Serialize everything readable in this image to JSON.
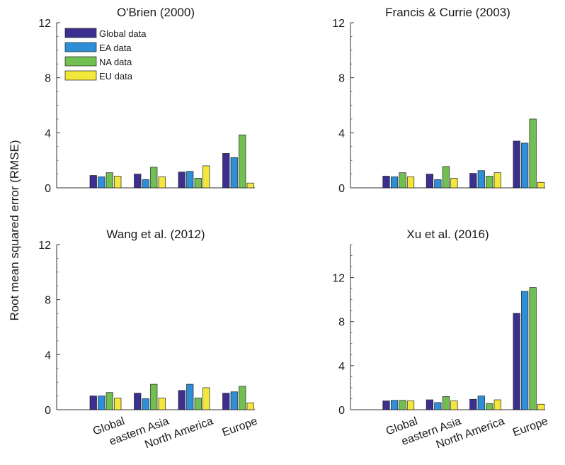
{
  "figure": {
    "ylabel": "Root mean squared error (RMSE)"
  },
  "legend": {
    "entries": [
      "Global data",
      "EA data",
      "NA data",
      "EU data"
    ]
  },
  "chart_data": [
    {
      "type": "bar",
      "title": "O'Brien (2000)",
      "categories": [
        "Global",
        "eastern Asia",
        "North America",
        "Europe"
      ],
      "ylim": [
        0,
        12
      ],
      "yticks": [
        0,
        4,
        8,
        12
      ],
      "legend": "top-left",
      "series": [
        {
          "name": "Global data",
          "color": "#3b2f8f",
          "values": [
            0.9,
            1.0,
            1.15,
            2.5
          ]
        },
        {
          "name": "EA data",
          "color": "#2e8fd8",
          "values": [
            0.8,
            0.6,
            1.2,
            2.2
          ]
        },
        {
          "name": "NA data",
          "color": "#70bf50",
          "values": [
            1.1,
            1.5,
            0.7,
            3.85
          ]
        },
        {
          "name": "EU data",
          "color": "#f2e73a",
          "values": [
            0.85,
            0.8,
            1.6,
            0.35
          ]
        }
      ]
    },
    {
      "type": "bar",
      "title": "Francis & Currie (2003)",
      "categories": [
        "Global",
        "eastern Asia",
        "North America",
        "Europe"
      ],
      "ylim": [
        0,
        12
      ],
      "yticks": [
        0,
        4,
        8,
        12
      ],
      "series": [
        {
          "name": "Global data",
          "color": "#3b2f8f",
          "values": [
            0.85,
            1.0,
            1.05,
            3.4
          ]
        },
        {
          "name": "EA data",
          "color": "#2e8fd8",
          "values": [
            0.8,
            0.6,
            1.25,
            3.25
          ]
        },
        {
          "name": "NA data",
          "color": "#70bf50",
          "values": [
            1.1,
            1.55,
            0.85,
            5.0
          ]
        },
        {
          "name": "EU data",
          "color": "#f2e73a",
          "values": [
            0.8,
            0.7,
            1.1,
            0.4
          ]
        }
      ]
    },
    {
      "type": "bar",
      "title": "Wang et al. (2012)",
      "categories": [
        "Global",
        "eastern Asia",
        "North America",
        "Europe"
      ],
      "ylim": [
        0,
        12
      ],
      "yticks": [
        0,
        4,
        8,
        12
      ],
      "series": [
        {
          "name": "Global data",
          "color": "#3b2f8f",
          "values": [
            1.0,
            1.2,
            1.4,
            1.2
          ]
        },
        {
          "name": "EA data",
          "color": "#2e8fd8",
          "values": [
            1.0,
            0.8,
            1.85,
            1.3
          ]
        },
        {
          "name": "NA data",
          "color": "#70bf50",
          "values": [
            1.25,
            1.85,
            0.85,
            1.7
          ]
        },
        {
          "name": "EU data",
          "color": "#f2e73a",
          "values": [
            0.85,
            0.85,
            1.6,
            0.5
          ]
        }
      ]
    },
    {
      "type": "bar",
      "title": "Xu et al. (2016)",
      "categories": [
        "Global",
        "eastern Asia",
        "North America",
        "Europe"
      ],
      "ylim": [
        0,
        15
      ],
      "yticks": [
        0,
        4,
        8,
        12
      ],
      "series": [
        {
          "name": "Global data",
          "color": "#3b2f8f",
          "values": [
            0.8,
            0.9,
            0.95,
            8.75
          ]
        },
        {
          "name": "EA data",
          "color": "#2e8fd8",
          "values": [
            0.85,
            0.65,
            1.25,
            10.75
          ]
        },
        {
          "name": "NA data",
          "color": "#70bf50",
          "values": [
            0.85,
            1.2,
            0.55,
            11.1
          ]
        },
        {
          "name": "EU data",
          "color": "#f2e73a",
          "values": [
            0.8,
            0.8,
            0.9,
            0.5
          ]
        }
      ]
    }
  ]
}
